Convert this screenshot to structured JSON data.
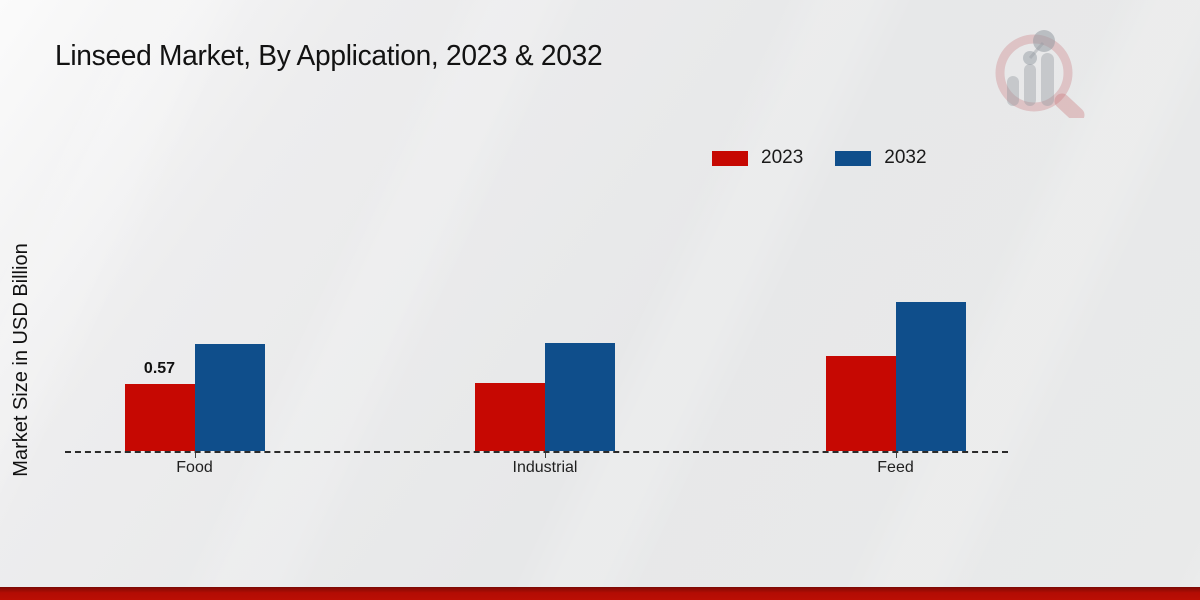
{
  "page": {
    "title": "Linseed Market, By Application, 2023 & 2032",
    "watermark_icon": "market-research-future-logo",
    "footer_bar_color": "#b30c04",
    "background_color": "#e9eaea"
  },
  "chart_data": {
    "type": "bar",
    "title": "Linseed Market, By Application, 2023 & 2032",
    "xlabel": "",
    "ylabel": "Market Size in USD Billion",
    "categories": [
      "Food",
      "Industrial",
      "Feed"
    ],
    "series": [
      {
        "name": "2023",
        "color": "#c60802",
        "values": [
          0.57,
          0.58,
          0.81
        ],
        "labels": [
          "0.57",
          null,
          null
        ]
      },
      {
        "name": "2032",
        "color": "#0f4e8b",
        "values": [
          0.91,
          0.92,
          1.27
        ],
        "labels": [
          null,
          null,
          null
        ]
      }
    ],
    "ylim": [
      0,
      1.4
    ],
    "grid": false,
    "y_axis_ticks_visible": false,
    "baseline_style": "dashed",
    "legend_position": "top-right",
    "shown_data_labels": [
      {
        "category": "Food",
        "series": "2023",
        "text": "0.57"
      }
    ]
  }
}
